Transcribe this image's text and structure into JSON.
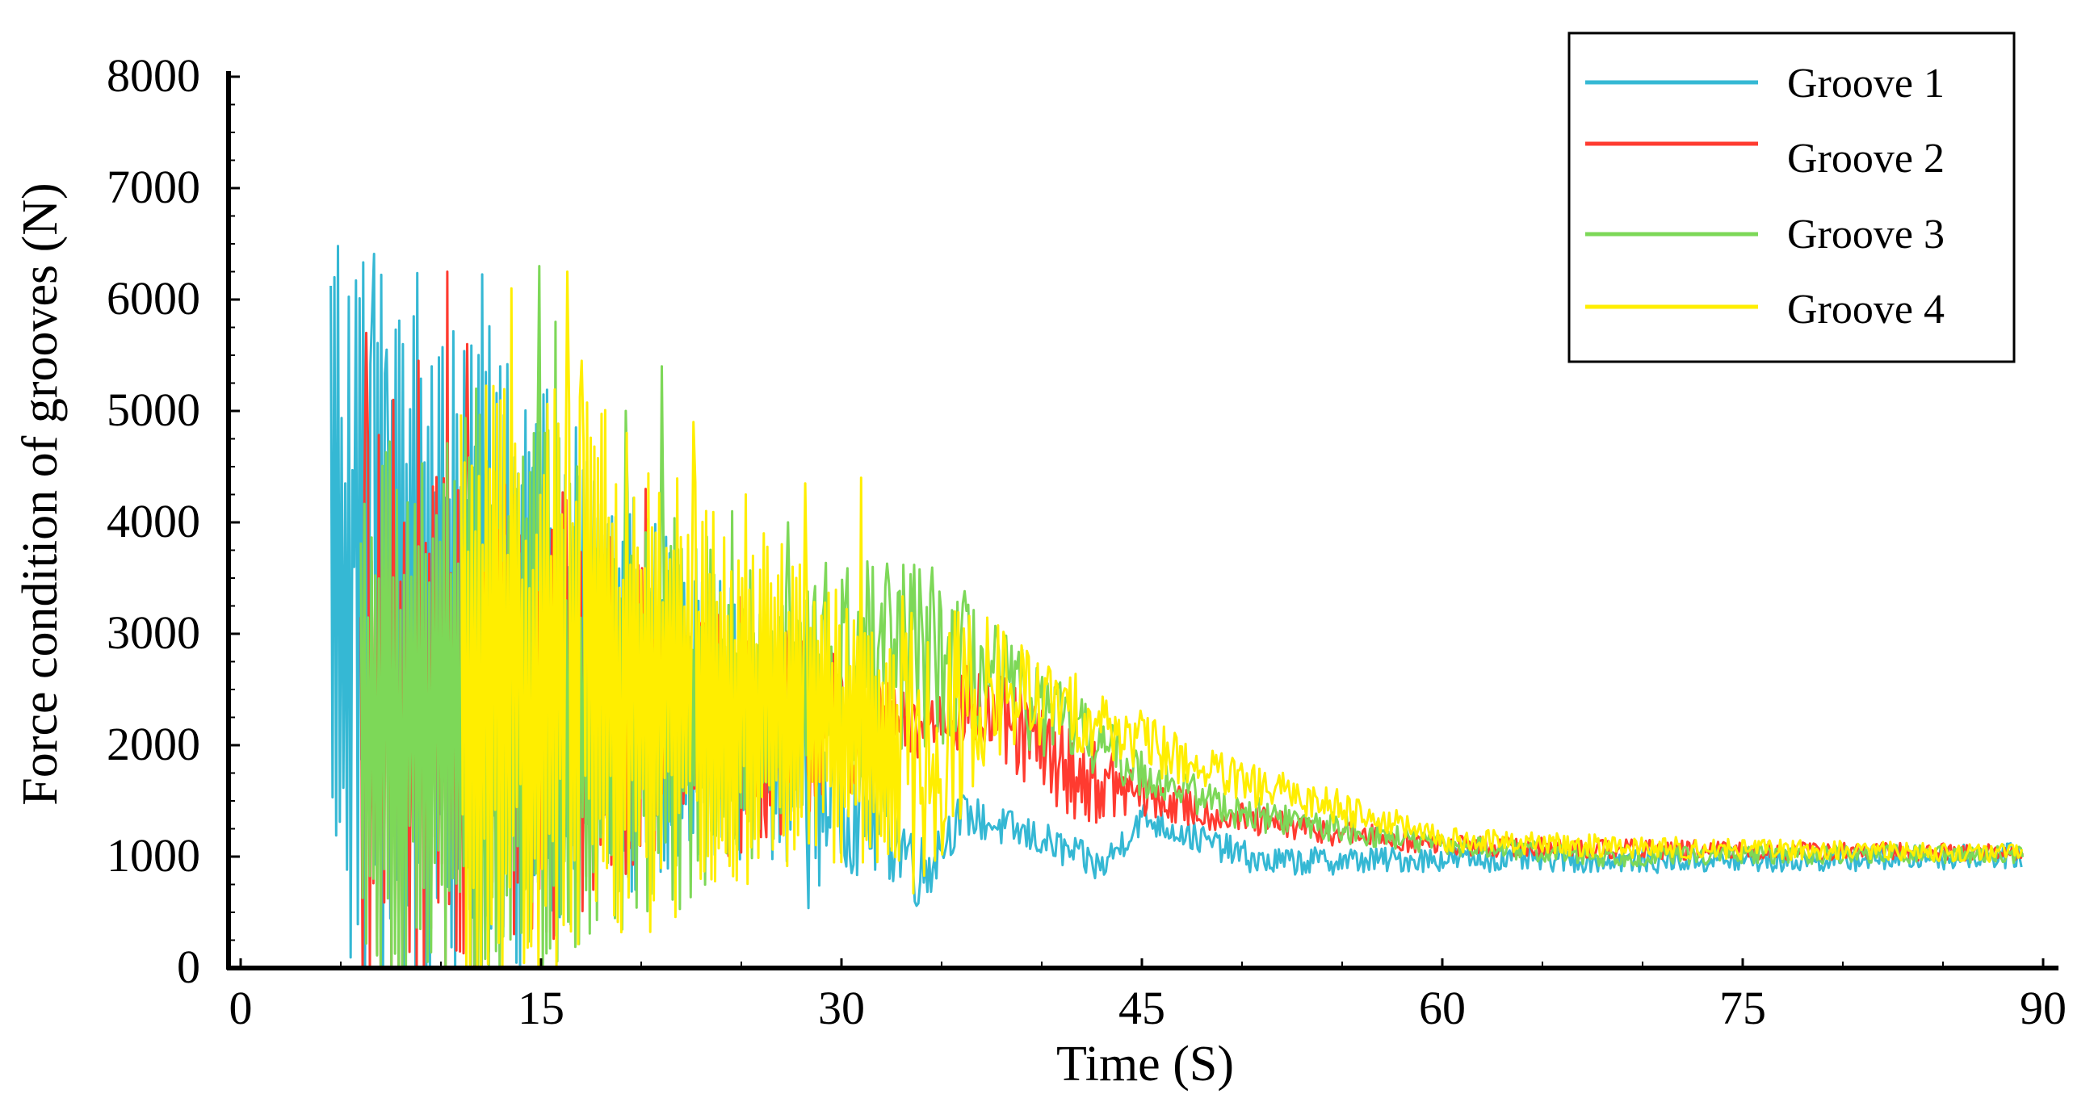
{
  "chart_data": {
    "type": "line",
    "title": "",
    "xlabel": "Time (S)",
    "ylabel": "Force condition of grooves (N)",
    "xlim": [
      0,
      90
    ],
    "ylim": [
      0,
      8000
    ],
    "xticks": [
      0,
      15,
      30,
      45,
      60,
      75,
      90
    ],
    "yticks": [
      0,
      1000,
      2000,
      3000,
      4000,
      5000,
      6000,
      7000,
      8000
    ],
    "grid": false,
    "legend_position": "top-right",
    "series": [
      {
        "name": "Groove 1",
        "color": "#35b8d4",
        "start": 4.5,
        "end": 89,
        "envelope": [
          [
            4.5,
            3200
          ],
          [
            10,
            3100
          ],
          [
            18,
            2500
          ],
          [
            24,
            2200
          ],
          [
            28,
            1900
          ],
          [
            30,
            1600
          ],
          [
            33,
            1150
          ],
          [
            34,
            850
          ],
          [
            36,
            1380
          ],
          [
            40,
            1150
          ],
          [
            43,
            900
          ],
          [
            45,
            1350
          ],
          [
            48,
            1150
          ],
          [
            51,
            950
          ],
          [
            60,
            980
          ],
          [
            75,
            960
          ],
          [
            89,
            1010
          ]
        ],
        "amplitude": [
          [
            4.5,
            3300
          ],
          [
            12,
            3000
          ],
          [
            18,
            1800
          ],
          [
            24,
            1200
          ],
          [
            28,
            900
          ],
          [
            30,
            450
          ],
          [
            33,
            280
          ],
          [
            36,
            120
          ],
          [
            45,
            90
          ],
          [
            60,
            70
          ],
          [
            89,
            70
          ]
        ],
        "peaks": [
          [
            4.9,
            6480
          ],
          [
            5.2,
            4350
          ],
          [
            5.7,
            3600
          ],
          [
            6.6,
            5900
          ],
          [
            7.3,
            5550
          ],
          [
            8.1,
            5600
          ],
          [
            8.6,
            5850
          ],
          [
            9.5,
            5400
          ]
        ]
      },
      {
        "name": "Groove 2",
        "color": "#ff3b30",
        "start": 6,
        "end": 89,
        "envelope": [
          [
            6,
            2100
          ],
          [
            12,
            2100
          ],
          [
            18,
            2300
          ],
          [
            22,
            2250
          ],
          [
            26,
            2150
          ],
          [
            30,
            2200
          ],
          [
            33,
            2100
          ],
          [
            36,
            2350
          ],
          [
            38,
            2200
          ],
          [
            40,
            1950
          ],
          [
            42,
            1700
          ],
          [
            45,
            1550
          ],
          [
            48,
            1400
          ],
          [
            51,
            1300
          ],
          [
            60,
            1100
          ],
          [
            75,
            1050
          ],
          [
            89,
            1040
          ]
        ],
        "amplitude": [
          [
            6,
            2500
          ],
          [
            14,
            2200
          ],
          [
            20,
            1200
          ],
          [
            24,
            800
          ],
          [
            28,
            550
          ],
          [
            31,
            350
          ],
          [
            34,
            200
          ],
          [
            38,
            280
          ],
          [
            42,
            250
          ],
          [
            45,
            150
          ],
          [
            48,
            100
          ],
          [
            60,
            60
          ],
          [
            89,
            50
          ]
        ],
        "peaks": [
          [
            6.3,
            5700
          ],
          [
            7.6,
            5100
          ],
          [
            8.9,
            5450
          ],
          [
            10.3,
            6250
          ],
          [
            11.3,
            5600
          ],
          [
            16.3,
            4200
          ],
          [
            20.2,
            4300
          ]
        ]
      },
      {
        "name": "Groove 3",
        "color": "#7dd858",
        "start": 6,
        "end": 89,
        "envelope": [
          [
            6,
            2200
          ],
          [
            12,
            2200
          ],
          [
            20,
            2200
          ],
          [
            26,
            2350
          ],
          [
            30,
            2600
          ],
          [
            33,
            2800
          ],
          [
            36,
            2750
          ],
          [
            38,
            2550
          ],
          [
            40,
            2300
          ],
          [
            43,
            2000
          ],
          [
            45,
            1750
          ],
          [
            50,
            1400
          ],
          [
            55,
            1250
          ],
          [
            60,
            1100
          ],
          [
            68,
            1000
          ],
          [
            75,
            1020
          ],
          [
            89,
            1020
          ]
        ],
        "amplitude": [
          [
            6,
            2300
          ],
          [
            14,
            2600
          ],
          [
            20,
            1800
          ],
          [
            26,
            1200
          ],
          [
            30,
            700
          ],
          [
            34,
            550
          ],
          [
            38,
            300
          ],
          [
            42,
            200
          ],
          [
            46,
            120
          ],
          [
            60,
            60
          ],
          [
            89,
            50
          ]
        ],
        "peaks": [
          [
            11.8,
            5200
          ],
          [
            14.9,
            6300
          ],
          [
            15.7,
            5800
          ],
          [
            19.2,
            5000
          ],
          [
            21,
            5400
          ],
          [
            24.5,
            4100
          ],
          [
            27.3,
            4000
          ]
        ]
      },
      {
        "name": "Groove 4",
        "color": "#ffee00",
        "start": 11,
        "end": 89,
        "envelope": [
          [
            11,
            2400
          ],
          [
            16,
            2600
          ],
          [
            22,
            2500
          ],
          [
            27,
            2300
          ],
          [
            30,
            2100
          ],
          [
            33,
            1900
          ],
          [
            35,
            2100
          ],
          [
            37,
            2500
          ],
          [
            40,
            2400
          ],
          [
            43,
            2200
          ],
          [
            46,
            1950
          ],
          [
            50,
            1650
          ],
          [
            55,
            1450
          ],
          [
            60,
            1150
          ],
          [
            70,
            1080
          ],
          [
            89,
            1030
          ]
        ],
        "amplitude": [
          [
            11,
            2600
          ],
          [
            18,
            2300
          ],
          [
            24,
            1600
          ],
          [
            28,
            1300
          ],
          [
            32,
            1000
          ],
          [
            36,
            600
          ],
          [
            40,
            250
          ],
          [
            44,
            180
          ],
          [
            48,
            140
          ],
          [
            55,
            100
          ],
          [
            60,
            70
          ],
          [
            89,
            50
          ]
        ],
        "peaks": [
          [
            13.5,
            6100
          ],
          [
            16.3,
            6250
          ],
          [
            17,
            5450
          ],
          [
            22.6,
            4900
          ],
          [
            25.2,
            4250
          ],
          [
            28.2,
            4350
          ],
          [
            31,
            4400
          ],
          [
            35.7,
            3200
          ]
        ]
      }
    ]
  },
  "legend": {
    "items": [
      {
        "label": "Groove 1",
        "color": "#35b8d4"
      },
      {
        "label": "Groove 2",
        "color": "#ff3b30"
      },
      {
        "label": "Groove 3",
        "color": "#7dd858"
      },
      {
        "label": "Groove 4",
        "color": "#ffee00"
      }
    ]
  }
}
